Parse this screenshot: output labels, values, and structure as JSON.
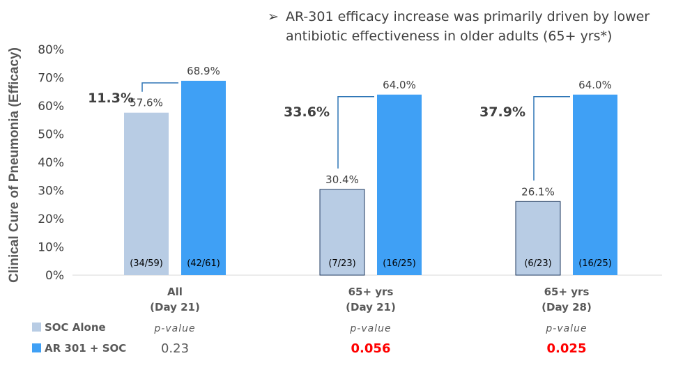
{
  "headline": {
    "bullet": "➢",
    "line1": "AR-301 efficacy increase was primarily driven by lower",
    "line2": "antibiotic effectiveness in older adults (65+ yrs*)"
  },
  "colors": {
    "soc": "#b8cce4",
    "ar301": "#3fa0f5",
    "bracket": "#2e75b6",
    "pvalue_significant": "#ff0000",
    "text": "#404040"
  },
  "chart_data": {
    "type": "bar",
    "ylabel": "Clinical Cure of Pneumonia (Efficacy)",
    "ylim": [
      0,
      80
    ],
    "yticks": [
      "0%",
      "10%",
      "20%",
      "30%",
      "40%",
      "50%",
      "60%",
      "70%",
      "80%"
    ],
    "grid": false,
    "legend_position": "bottom-left",
    "categories": [
      {
        "line1": "All",
        "line2": "(Day 21)"
      },
      {
        "line1": "65+ yrs",
        "line2": "(Day 21)"
      },
      {
        "line1": "65+ yrs",
        "line2": "(Day 28)"
      }
    ],
    "series": [
      {
        "name": "SOC Alone",
        "values": [
          57.6,
          30.4,
          26.1
        ],
        "value_labels": [
          "57.6%",
          "30.4%",
          "26.1%"
        ],
        "counts": [
          "(34/59)",
          "(7/23)",
          "(6/23)"
        ]
      },
      {
        "name": "AR 301 + SOC",
        "values": [
          68.9,
          64.0,
          64.0
        ],
        "value_labels": [
          "68.9%",
          "64.0%",
          "64.0%"
        ],
        "counts": [
          "(42/61)",
          "(16/25)",
          "(16/25)"
        ]
      }
    ],
    "differences": [
      "11.3%",
      "33.6%",
      "37.9%"
    ],
    "pvalue_label": "p-value",
    "pvalues": [
      {
        "value": "0.23",
        "significant": false
      },
      {
        "value": "0.056",
        "significant": true
      },
      {
        "value": "0.025",
        "significant": true
      }
    ]
  }
}
